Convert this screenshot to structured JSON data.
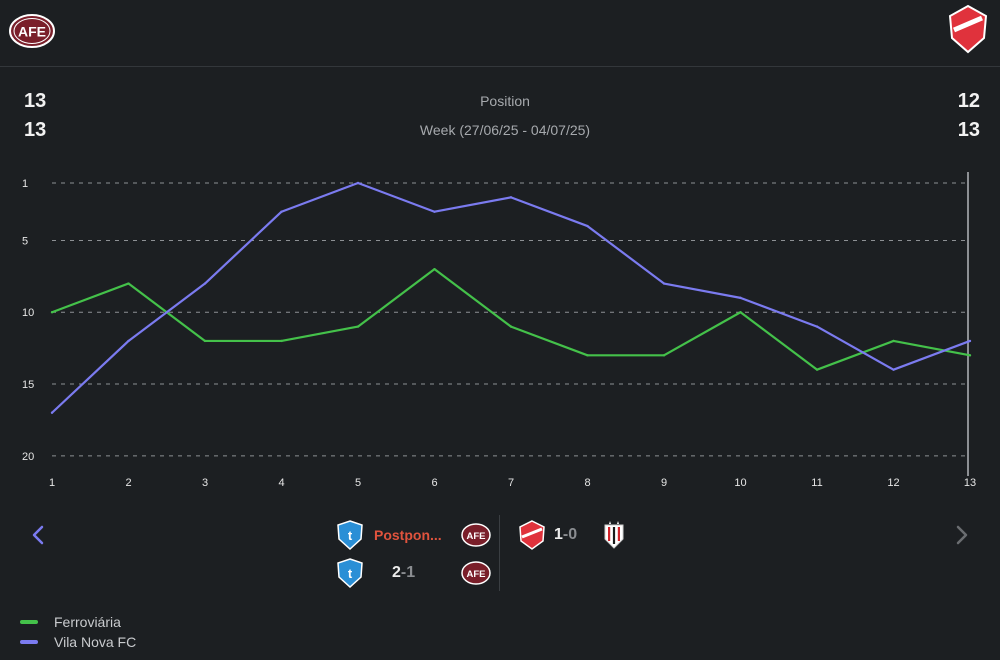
{
  "header": {
    "left_team_logo": "ferroviaria-crest",
    "right_team_logo": "vila-nova-crest"
  },
  "stats": {
    "left_position": "13",
    "left_week_position": "13",
    "right_position": "12",
    "right_week_position": "13",
    "title": "Position",
    "week_label": "Week (27/06/25 - 04/07/25)"
  },
  "chart_data": {
    "type": "line",
    "title": "Position",
    "x": [
      1,
      2,
      3,
      4,
      5,
      6,
      7,
      8,
      9,
      10,
      11,
      12,
      13
    ],
    "x_tick_labels": [
      "1",
      "2",
      "3",
      "4",
      "5",
      "6",
      "7",
      "8",
      "9",
      "10",
      "11",
      "12",
      "13"
    ],
    "y_tick_labels": [
      "1",
      "5",
      "10",
      "15",
      "20"
    ],
    "y_ticks": [
      1,
      5,
      10,
      15,
      20
    ],
    "ylim": [
      1,
      20
    ],
    "y_inverted": true,
    "grid": "horizontal dashed",
    "legend_position": "bottom-left",
    "series": [
      {
        "name": "Ferroviária",
        "color": "#44c14a",
        "values": [
          10,
          8,
          12,
          12,
          11,
          7,
          11,
          13,
          13,
          10,
          14,
          12,
          13
        ]
      },
      {
        "name": "Vila Nova FC",
        "color": "#7b7bf0",
        "values": [
          17,
          12,
          8,
          3,
          1,
          3,
          2,
          4,
          8,
          9,
          11,
          14,
          12
        ]
      }
    ]
  },
  "matches": {
    "ferroviaria": [
      {
        "home_icon": "paysandu-crest",
        "result": "Postpon...",
        "postponed": true,
        "away_icon": "ferroviaria-crest"
      },
      {
        "home_icon": "paysandu-crest",
        "home_score": "2",
        "separator": "-",
        "away_score": "1",
        "away_icon": "ferroviaria-crest"
      }
    ],
    "vila_nova": [
      {
        "home_icon": "vila-nova-crest",
        "home_score": "1",
        "separator": "-",
        "away_score": "0",
        "away_icon": "atletico-go-crest"
      }
    ]
  },
  "navigation": {
    "prev_icon": "chevron-left-icon",
    "next_icon": "chevron-right-icon"
  },
  "colors": {
    "background": "#1c1f22",
    "ferroviaria": "#44c14a",
    "vila_nova": "#7b7bf0",
    "postponed": "#e0533d",
    "nav_active": "#7b7bf0",
    "nav_inactive": "#6a6d71"
  }
}
